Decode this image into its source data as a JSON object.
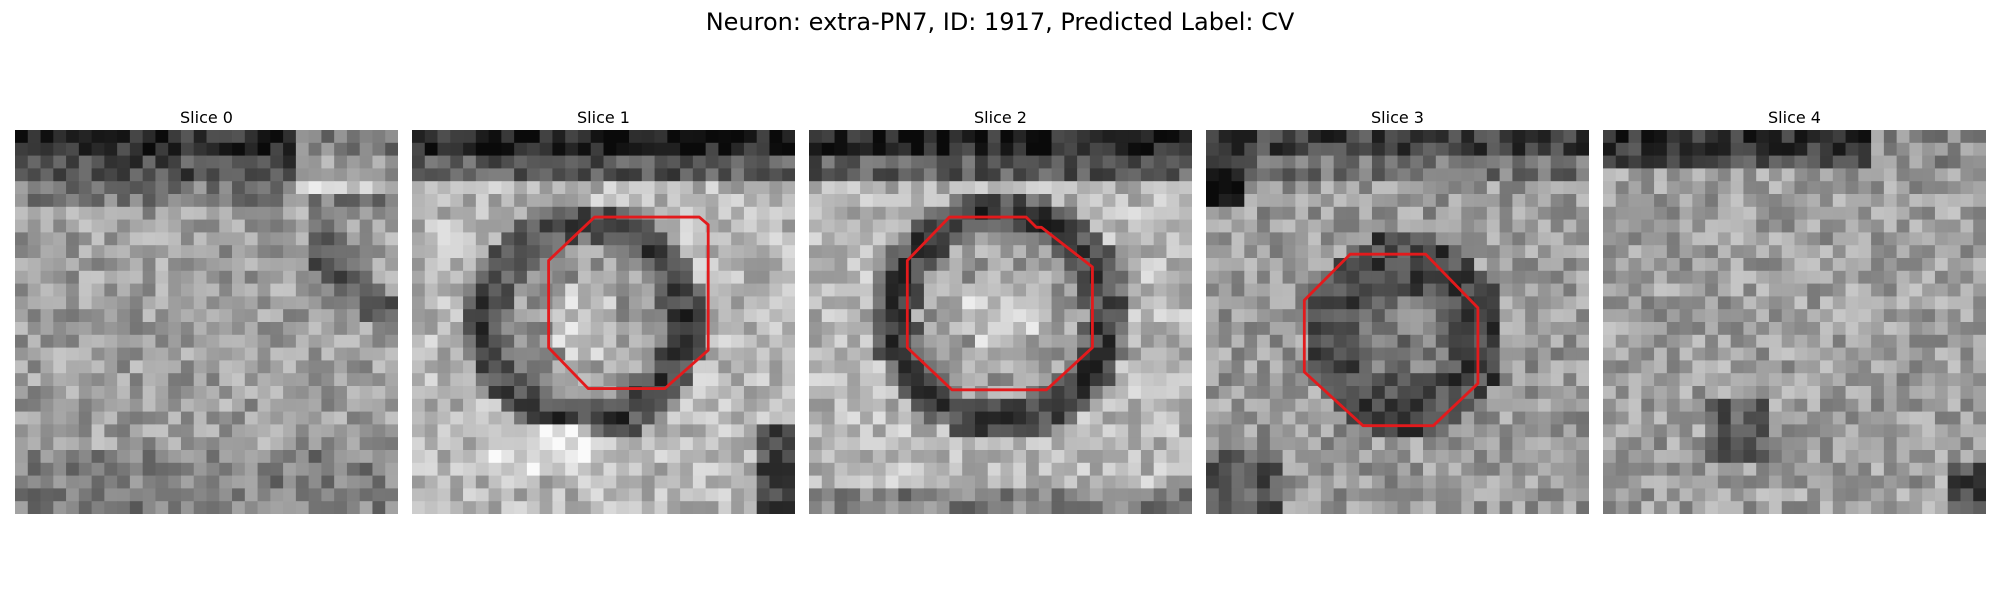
{
  "figure": {
    "title": "Neuron: extra-PN7, ID: 1917, Predicted Label: CV"
  },
  "panels": [
    {
      "label": "Slice 0",
      "has_outline": false
    },
    {
      "label": "Slice 1",
      "has_outline": true
    },
    {
      "label": "Slice 2",
      "has_outline": true
    },
    {
      "label": "Slice 3",
      "has_outline": true
    },
    {
      "label": "Slice 4",
      "has_outline": false
    }
  ],
  "colors": {
    "outline": "#e31a1c",
    "background": "#ffffff"
  }
}
